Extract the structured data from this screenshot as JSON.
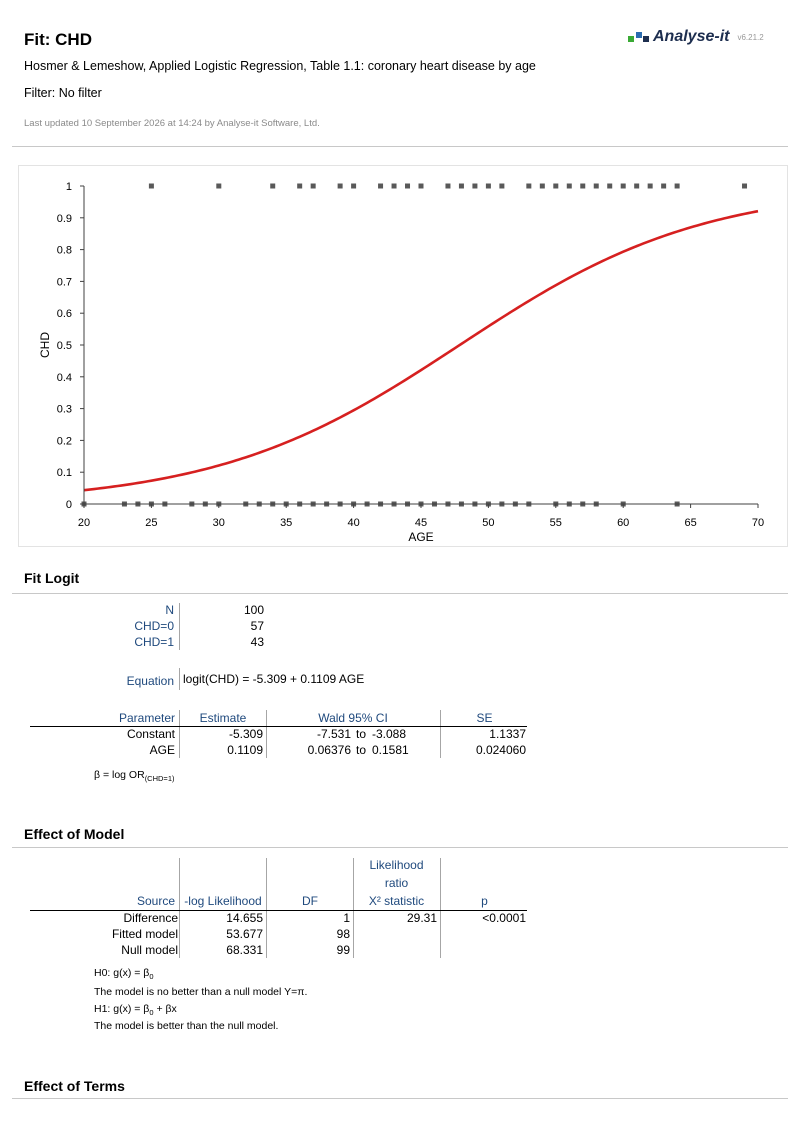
{
  "header": {
    "title": "Fit: CHD",
    "subtitle": "Hosmer & Lemeshow, Applied Logistic Regression, Table 1.1: coronary heart disease by age",
    "filter": "Filter: No filter",
    "last_updated": "Last updated 10 September 2026 at 14:24 by Analyse-it Software, Ltd.",
    "logo_text": "Analyse-it",
    "version": "v6.21.2",
    "logo_colors": [
      "#3aaa35",
      "#2b6cb0",
      "#1d2e4f"
    ]
  },
  "chart_data": {
    "type": "scatter",
    "xlabel": "AGE",
    "ylabel": "CHD",
    "xlim": [
      20,
      70
    ],
    "ylim": [
      0,
      1
    ],
    "xticks": [
      "20",
      "25",
      "30",
      "35",
      "40",
      "45",
      "50",
      "55",
      "60",
      "65",
      "70"
    ],
    "yticks": [
      "0",
      "0.1",
      "0.2",
      "0.3",
      "0.4",
      "0.5",
      "0.6",
      "0.7",
      "0.8",
      "0.9",
      "1"
    ],
    "points_y1": [
      25,
      30,
      34,
      36,
      37,
      39,
      40,
      42,
      43,
      44,
      45,
      47,
      48,
      49,
      50,
      51,
      53,
      54,
      55,
      56,
      57,
      58,
      59,
      60,
      61,
      62,
      63,
      64,
      69
    ],
    "points_y0": [
      20,
      23,
      24,
      25,
      26,
      28,
      29,
      30,
      32,
      33,
      34,
      35,
      36,
      37,
      38,
      39,
      40,
      41,
      42,
      43,
      44,
      45,
      46,
      47,
      48,
      49,
      50,
      51,
      52,
      53,
      55,
      56,
      57,
      58,
      60,
      64
    ],
    "curve": {
      "constant": -5.309,
      "slope": 0.1109,
      "color": "#d62020"
    },
    "marker_color": "#595959"
  },
  "fit_logit": {
    "title": "Fit Logit",
    "counts": [
      {
        "label": "N",
        "value": "100"
      },
      {
        "label": "CHD=0",
        "value": "57"
      },
      {
        "label": "CHD=1",
        "value": "43"
      }
    ],
    "equation_label": "Equation",
    "equation": "logit(CHD) = -5.309 + 0.1109 AGE",
    "params_headers": {
      "parameter": "Parameter",
      "estimate": "Estimate",
      "wald": "Wald 95% CI",
      "se": "SE"
    },
    "params": [
      {
        "name": "Constant",
        "estimate": "-5.309",
        "ci_low": "-7.531",
        "to": "to",
        "ci_high": "-3.088",
        "se": "1.1337"
      },
      {
        "name": "AGE",
        "estimate": "0.1109",
        "ci_low": "0.06376",
        "to": "to",
        "ci_high": "0.1581",
        "se": "0.024060"
      }
    ],
    "beta_note": "β = log OR",
    "beta_note_sub": "(CHD=1)"
  },
  "effect_model": {
    "title": "Effect of Model",
    "headers": {
      "source": "Source",
      "loglik": "-log Likelihood",
      "df": "DF",
      "lr1": "Likelihood",
      "lr2": "ratio",
      "lr3": "X² statistic",
      "p": "p"
    },
    "rows": [
      {
        "source": "Difference",
        "loglik": "14.655",
        "df": "1",
        "x2": "29.31",
        "p": "<0.0001"
      },
      {
        "source": "Fitted model",
        "loglik": "53.677",
        "df": "98",
        "x2": "",
        "p": ""
      },
      {
        "source": "Null model",
        "loglik": "68.331",
        "df": "99",
        "x2": "",
        "p": ""
      }
    ],
    "h0_prefix": "H0: g(x) = β",
    "h0_sub": "0",
    "h0_desc": "The model is no better than a null model Y=π.",
    "h1_prefix": "H1: g(x) = β",
    "h1_sub": "0",
    "h1_suffix": " + βx",
    "h1_desc": "The model is better than the null model."
  },
  "effect_terms": {
    "title": "Effect of Terms"
  }
}
